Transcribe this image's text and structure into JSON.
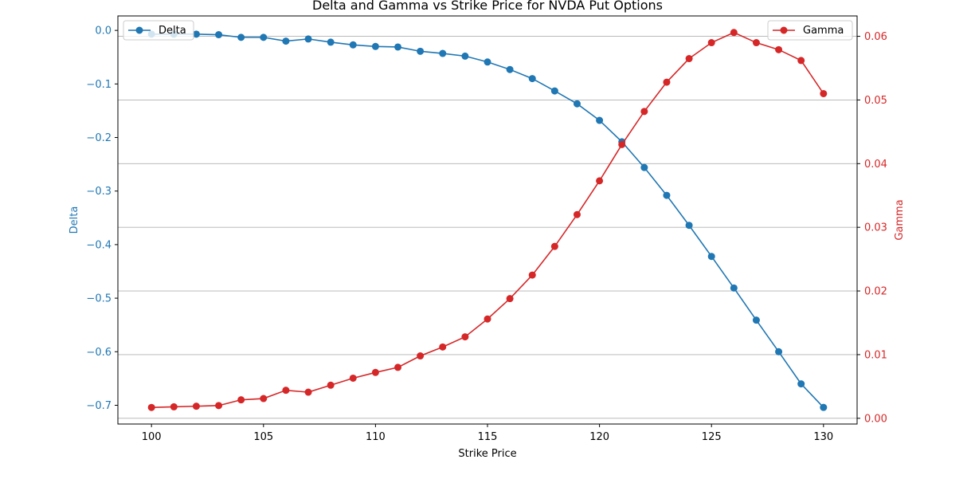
{
  "chart_data": {
    "type": "line",
    "title": "Delta and Gamma vs Strike Price for NVDA Put Options",
    "xlabel": "Strike Price",
    "xlim": [
      98.5,
      131.5
    ],
    "xticks": [
      100,
      105,
      110,
      115,
      120,
      125,
      130
    ],
    "x": [
      100,
      101,
      102,
      103,
      104,
      105,
      106,
      107,
      108,
      109,
      110,
      111,
      112,
      113,
      114,
      115,
      116,
      117,
      118,
      119,
      120,
      121,
      122,
      123,
      124,
      125,
      126,
      127,
      128,
      129,
      130
    ],
    "grid": "horizontal lines on Gamma axis",
    "series": [
      {
        "name": "Delta",
        "axis": "left",
        "color": "#1f77b4",
        "marker": "circle",
        "values": [
          -0.007,
          -0.007,
          -0.007,
          -0.008,
          -0.013,
          -0.013,
          -0.02,
          -0.016,
          -0.022,
          -0.027,
          -0.03,
          -0.031,
          -0.039,
          -0.043,
          -0.048,
          -0.059,
          -0.073,
          -0.09,
          -0.113,
          -0.137,
          -0.168,
          -0.208,
          -0.256,
          -0.308,
          -0.364,
          -0.422,
          -0.481,
          -0.541,
          -0.6,
          -0.66,
          -0.704
        ]
      },
      {
        "name": "Gamma",
        "axis": "right",
        "color": "#d62728",
        "marker": "circle",
        "values": [
          0.0017,
          0.0018,
          0.0019,
          0.002,
          0.0029,
          0.0031,
          0.0044,
          0.0041,
          0.0052,
          0.0063,
          0.0072,
          0.008,
          0.0098,
          0.0112,
          0.0128,
          0.0156,
          0.0188,
          0.0225,
          0.027,
          0.032,
          0.0373,
          0.043,
          0.0482,
          0.0528,
          0.0565,
          0.059,
          0.0606,
          0.059,
          0.0579,
          0.0562,
          0.051
        ]
      }
    ],
    "left_axis": {
      "label": "Delta",
      "color": "#1f77b4",
      "ylim": [
        -0.735,
        0.027
      ],
      "ticks": [
        0.0,
        -0.1,
        -0.2,
        -0.3,
        -0.4,
        -0.5,
        -0.6,
        -0.7
      ],
      "tick_labels": [
        "0.0",
        "−0.1",
        "−0.2",
        "−0.3",
        "−0.4",
        "−0.5",
        "−0.6",
        "−0.7"
      ]
    },
    "right_axis": {
      "label": "Gamma",
      "color": "#d62728",
      "ylim": [
        -0.0009,
        0.0632
      ],
      "ticks": [
        0.0,
        0.01,
        0.02,
        0.03,
        0.04,
        0.05,
        0.06
      ],
      "tick_labels": [
        "0.00",
        "0.01",
        "0.02",
        "0.03",
        "0.04",
        "0.05",
        "0.06"
      ]
    },
    "legends": [
      {
        "series": "Delta",
        "placement": "upper-left"
      },
      {
        "series": "Gamma",
        "placement": "upper-right"
      }
    ]
  }
}
